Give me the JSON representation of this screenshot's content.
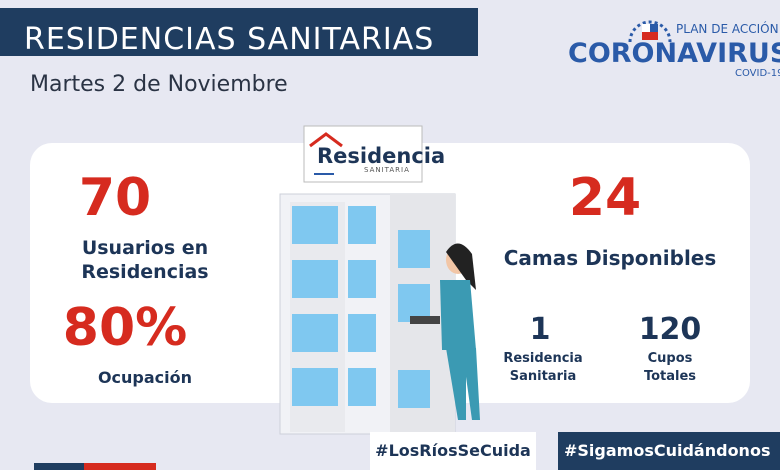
{
  "header": {
    "title": "RESIDENCIAS SANITARIAS",
    "date": "Martes 2 de Noviembre"
  },
  "logo": {
    "plan": "PLAN DE ACCIÓN",
    "name": "CORONAVIRUS",
    "covid": "COVID-19"
  },
  "sign": {
    "name": "Residencia",
    "sub": "SANITARIA"
  },
  "stats": [
    {
      "value": "70",
      "label": "Usuarios en Residencias"
    },
    {
      "value": "80%",
      "label": "Ocupación"
    },
    {
      "value": "24",
      "label": "Camas Disponibles"
    },
    {
      "value": "1",
      "label": "Residencia Sanitaria"
    },
    {
      "value": "120",
      "label": "Cupos Totales"
    }
  ],
  "hashtags": [
    "#LosRíosSeCuida",
    "#SigamosCuidándonos"
  ]
}
